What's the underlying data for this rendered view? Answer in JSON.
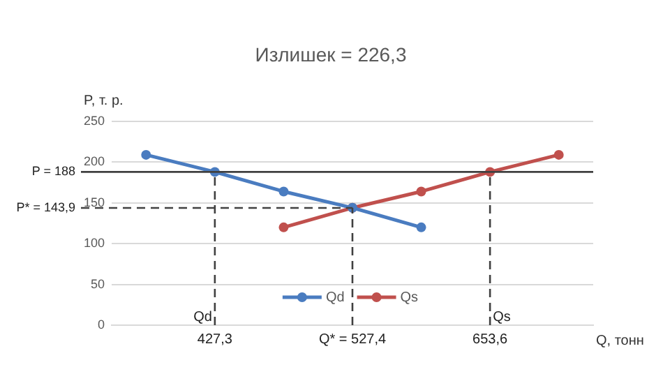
{
  "chart_data": {
    "type": "line",
    "title": "Излишек = 226,3",
    "ylabel": "P, т. р.",
    "xlabel": "Q, тонн",
    "categories": [
      null,
      "427,3",
      null,
      "Q* = 527,4",
      null,
      "653,6",
      null
    ],
    "series": [
      {
        "name": "Qd",
        "color": "#4a7cc0",
        "values": [
          209,
          188,
          164,
          144,
          120,
          null,
          null
        ]
      },
      {
        "name": "Qs",
        "color": "#c0504d",
        "values": [
          null,
          null,
          120,
          144,
          164,
          188,
          209
        ]
      }
    ],
    "ylim": [
      0,
      250
    ],
    "yticks": [
      0,
      50,
      100,
      150,
      200,
      250
    ],
    "grid": "y",
    "legend": "bottom",
    "marker": "circle",
    "line_style": "solid",
    "ref_lines": [
      {
        "axis": "y",
        "value": 188,
        "label": "P = 188",
        "color": "#404040",
        "line_style": "solid"
      },
      {
        "axis": "y",
        "value": 143.9,
        "label": "P* = 143,9",
        "color": "#404040",
        "line_style": "dashed"
      },
      {
        "axis": "x",
        "value": "427,3",
        "label": "Qd",
        "color": "#404040",
        "line_style": "dashed"
      },
      {
        "axis": "x",
        "value": "Q* = 527,4",
        "color": "#404040",
        "line_style": "dashed"
      },
      {
        "axis": "x",
        "value": "653,6",
        "label": "Qs",
        "color": "#404040",
        "line_style": "dashed"
      }
    ]
  }
}
